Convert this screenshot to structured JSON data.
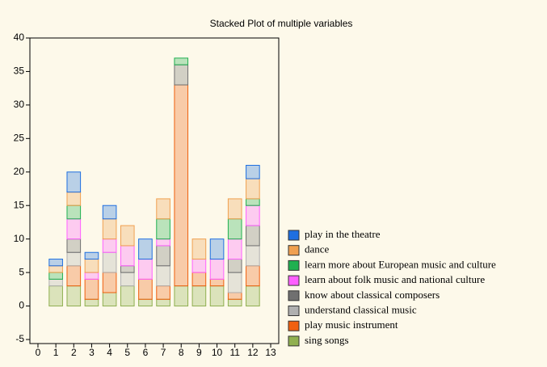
{
  "chart_data": {
    "type": "stacked_bar",
    "title": "Stacked Plot of multiple variables",
    "x": [
      1,
      2,
      3,
      4,
      5,
      6,
      7,
      8,
      9,
      10,
      11,
      12
    ],
    "series": [
      {
        "name": "sing songs",
        "color": "#90b050",
        "values": [
          3,
          3,
          1,
          2,
          3,
          1,
          1,
          3,
          3,
          3,
          1,
          3
        ]
      },
      {
        "name": "play music instrument",
        "color": "#f06010",
        "values": [
          0,
          3,
          3,
          3,
          0,
          3,
          2,
          30,
          2,
          1,
          1,
          3
        ]
      },
      {
        "name": "understand classical music",
        "color": "#b0b0b0",
        "values": [
          1,
          2,
          0,
          3,
          2,
          0,
          3,
          0,
          0,
          0,
          3,
          3
        ]
      },
      {
        "name": "know about classical composers",
        "color": "#707070",
        "values": [
          0,
          2,
          0,
          0,
          1,
          0,
          3,
          3,
          0,
          0,
          2,
          3
        ]
      },
      {
        "name": "learn about folk music and national culture",
        "color": "#ff60ff",
        "values": [
          0,
          3,
          1,
          2,
          3,
          3,
          1,
          0,
          2,
          3,
          3,
          3
        ]
      },
      {
        "name": "learn more about European music and culture",
        "color": "#20b050",
        "values": [
          1,
          2,
          0,
          0,
          0,
          0,
          3,
          1,
          0,
          0,
          3,
          1
        ]
      },
      {
        "name": "dance",
        "color": "#f0a050",
        "values": [
          1,
          2,
          2,
          3,
          3,
          0,
          3,
          0,
          3,
          0,
          3,
          3
        ]
      },
      {
        "name": "play in the theatre",
        "color": "#1f6fe0",
        "values": [
          1,
          3,
          1,
          2,
          0,
          3,
          0,
          0,
          0,
          3,
          0,
          2
        ]
      }
    ],
    "xlim": [
      -0.45,
      13.45
    ],
    "xticks": [
      0,
      1,
      2,
      3,
      4,
      5,
      6,
      7,
      8,
      9,
      10,
      11,
      12,
      13
    ],
    "ylim": [
      -5,
      40
    ],
    "yticks": [
      -5,
      0,
      5,
      10,
      15,
      20,
      25,
      30,
      35,
      40
    ]
  }
}
